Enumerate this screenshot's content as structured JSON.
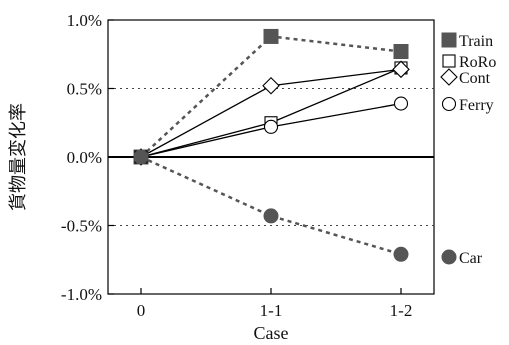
{
  "chart_data": {
    "type": "line",
    "xlabel": "Case",
    "ylabel": "貨物量変化率",
    "categories": [
      "0",
      "1-1",
      "1-2"
    ],
    "ylim": [
      -1.0,
      1.0
    ],
    "yticks": [
      1.0,
      0.5,
      0.0,
      -0.5,
      -1.0
    ],
    "ytick_labels": [
      "1.0%",
      "0.5%",
      "0.0%",
      "-0.5%",
      "-1.0%"
    ],
    "grid": "dotted horizontal at ±0.5%",
    "legend_position": "right",
    "series": [
      {
        "name": "Train",
        "marker": "filled-square",
        "line": "dashed",
        "color": "#555555",
        "values": [
          0.0,
          0.88,
          0.77
        ]
      },
      {
        "name": "RoRo",
        "marker": "open-square",
        "line": "solid",
        "color": "#000000",
        "values": [
          0.0,
          0.25,
          0.65
        ]
      },
      {
        "name": "Cont",
        "marker": "open-diamond",
        "line": "solid",
        "color": "#000000",
        "values": [
          0.0,
          0.52,
          0.64
        ]
      },
      {
        "name": "Ferry",
        "marker": "open-circle",
        "line": "solid",
        "color": "#000000",
        "values": [
          0.0,
          0.22,
          0.39
        ]
      },
      {
        "name": "Car",
        "marker": "filled-circle",
        "line": "dashed",
        "color": "#555555",
        "values": [
          0.0,
          -0.43,
          -0.71
        ]
      }
    ]
  }
}
